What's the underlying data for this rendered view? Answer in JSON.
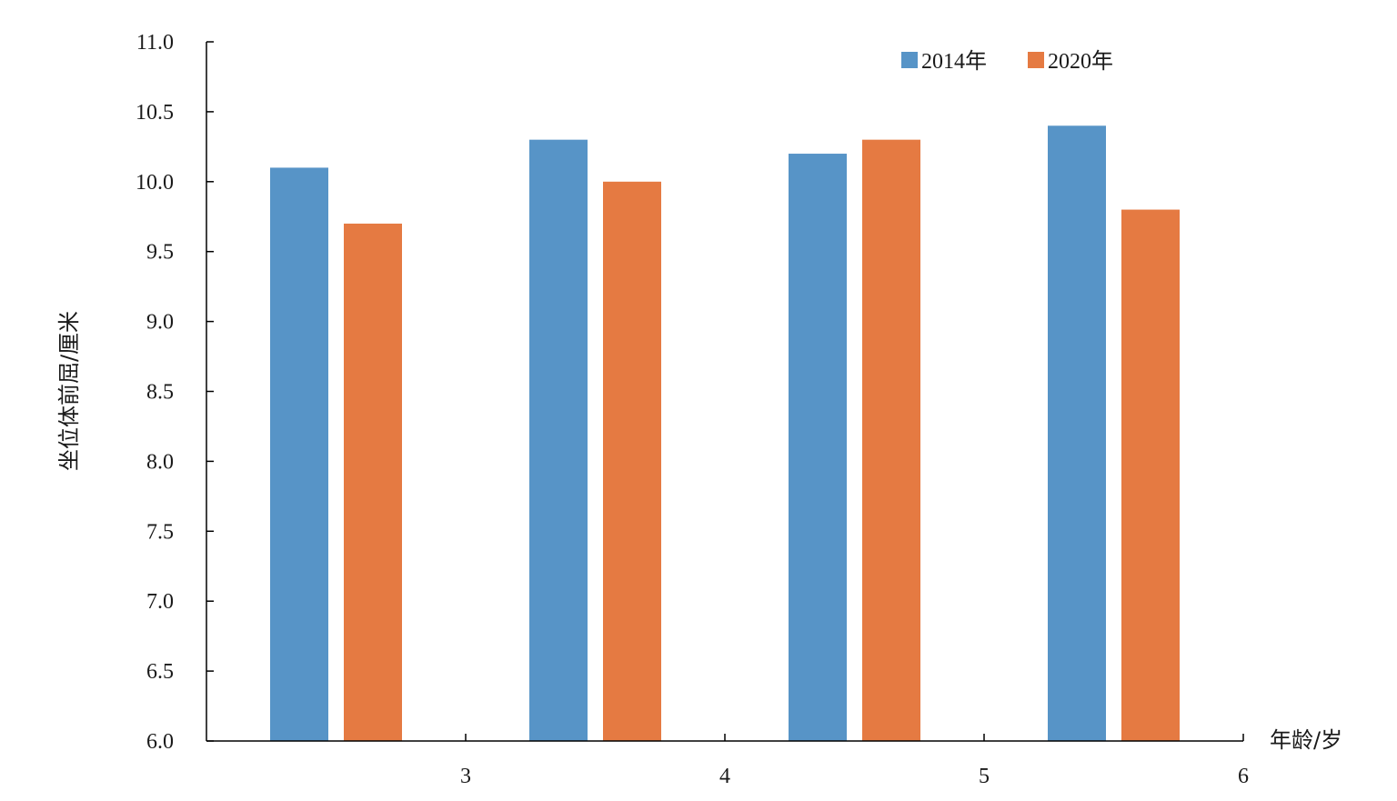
{
  "chart_data": {
    "type": "bar",
    "categories": [
      "3",
      "4",
      "5",
      "6"
    ],
    "x_tick_labels": [
      "3",
      "4",
      "5",
      "6"
    ],
    "series": [
      {
        "name": "2014年",
        "color": "#5794C7",
        "values": [
          10.1,
          10.3,
          10.2,
          10.4
        ]
      },
      {
        "name": "2020年",
        "color": "#E57A42",
        "values": [
          9.7,
          10.0,
          10.3,
          9.8
        ]
      }
    ],
    "y_ticks": [
      "6.0",
      "6.5",
      "7.0",
      "7.5",
      "8.0",
      "8.5",
      "9.0",
      "9.5",
      "10.0",
      "10.5",
      "11.0"
    ],
    "ylim": [
      6.0,
      11.0
    ],
    "xlabel": "年龄/岁",
    "ylabel": "坐位体前屈/厘米",
    "title": "",
    "grid": false,
    "legend_position": "top-right"
  }
}
